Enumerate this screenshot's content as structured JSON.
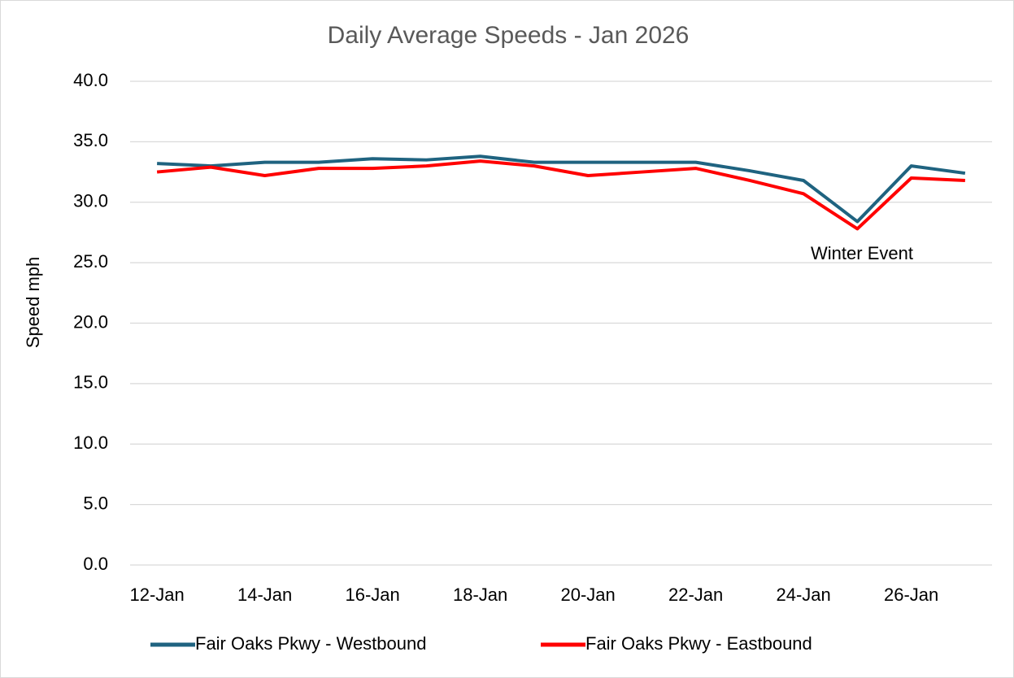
{
  "chart_data": {
    "type": "line",
    "title": "Daily Average Speeds - Jan 2026",
    "y_label": "Speed mph",
    "categories": [
      "12-Jan",
      null,
      "14-Jan",
      null,
      "16-Jan",
      null,
      "18-Jan",
      null,
      "20-Jan",
      null,
      "22-Jan",
      null,
      "24-Jan",
      null,
      "26-Jan",
      null
    ],
    "series": [
      {
        "name": "Fair Oaks Pkwy - Westbound",
        "color": "#1f6380",
        "values": [
          33.2,
          33.0,
          33.3,
          33.3,
          33.6,
          33.5,
          33.8,
          33.3,
          33.3,
          33.3,
          33.3,
          32.6,
          31.8,
          28.4,
          33.0,
          32.4
        ]
      },
      {
        "name": "Fair Oaks Pkwy - Eastbound",
        "color": "#ff0000",
        "values": [
          32.5,
          32.9,
          32.2,
          32.8,
          32.8,
          33.0,
          33.4,
          33.0,
          32.2,
          32.5,
          32.8,
          31.8,
          30.7,
          27.8,
          32.0,
          31.8
        ]
      }
    ],
    "annotation": "Winter Event",
    "ylim": [
      0,
      40
    ],
    "yticks": [
      {
        "value": 0,
        "label": "0.0"
      },
      {
        "value": 5,
        "label": "5.0"
      },
      {
        "value": 10,
        "label": "10.0"
      },
      {
        "value": 15,
        "label": "15.0"
      },
      {
        "value": 20,
        "label": "20.0"
      },
      {
        "value": 25,
        "label": "25.0"
      },
      {
        "value": 30,
        "label": "30.0"
      },
      {
        "value": 35,
        "label": "35.0"
      },
      {
        "value": 40,
        "label": "40.0"
      }
    ],
    "grid": true,
    "legend": "bottom"
  }
}
